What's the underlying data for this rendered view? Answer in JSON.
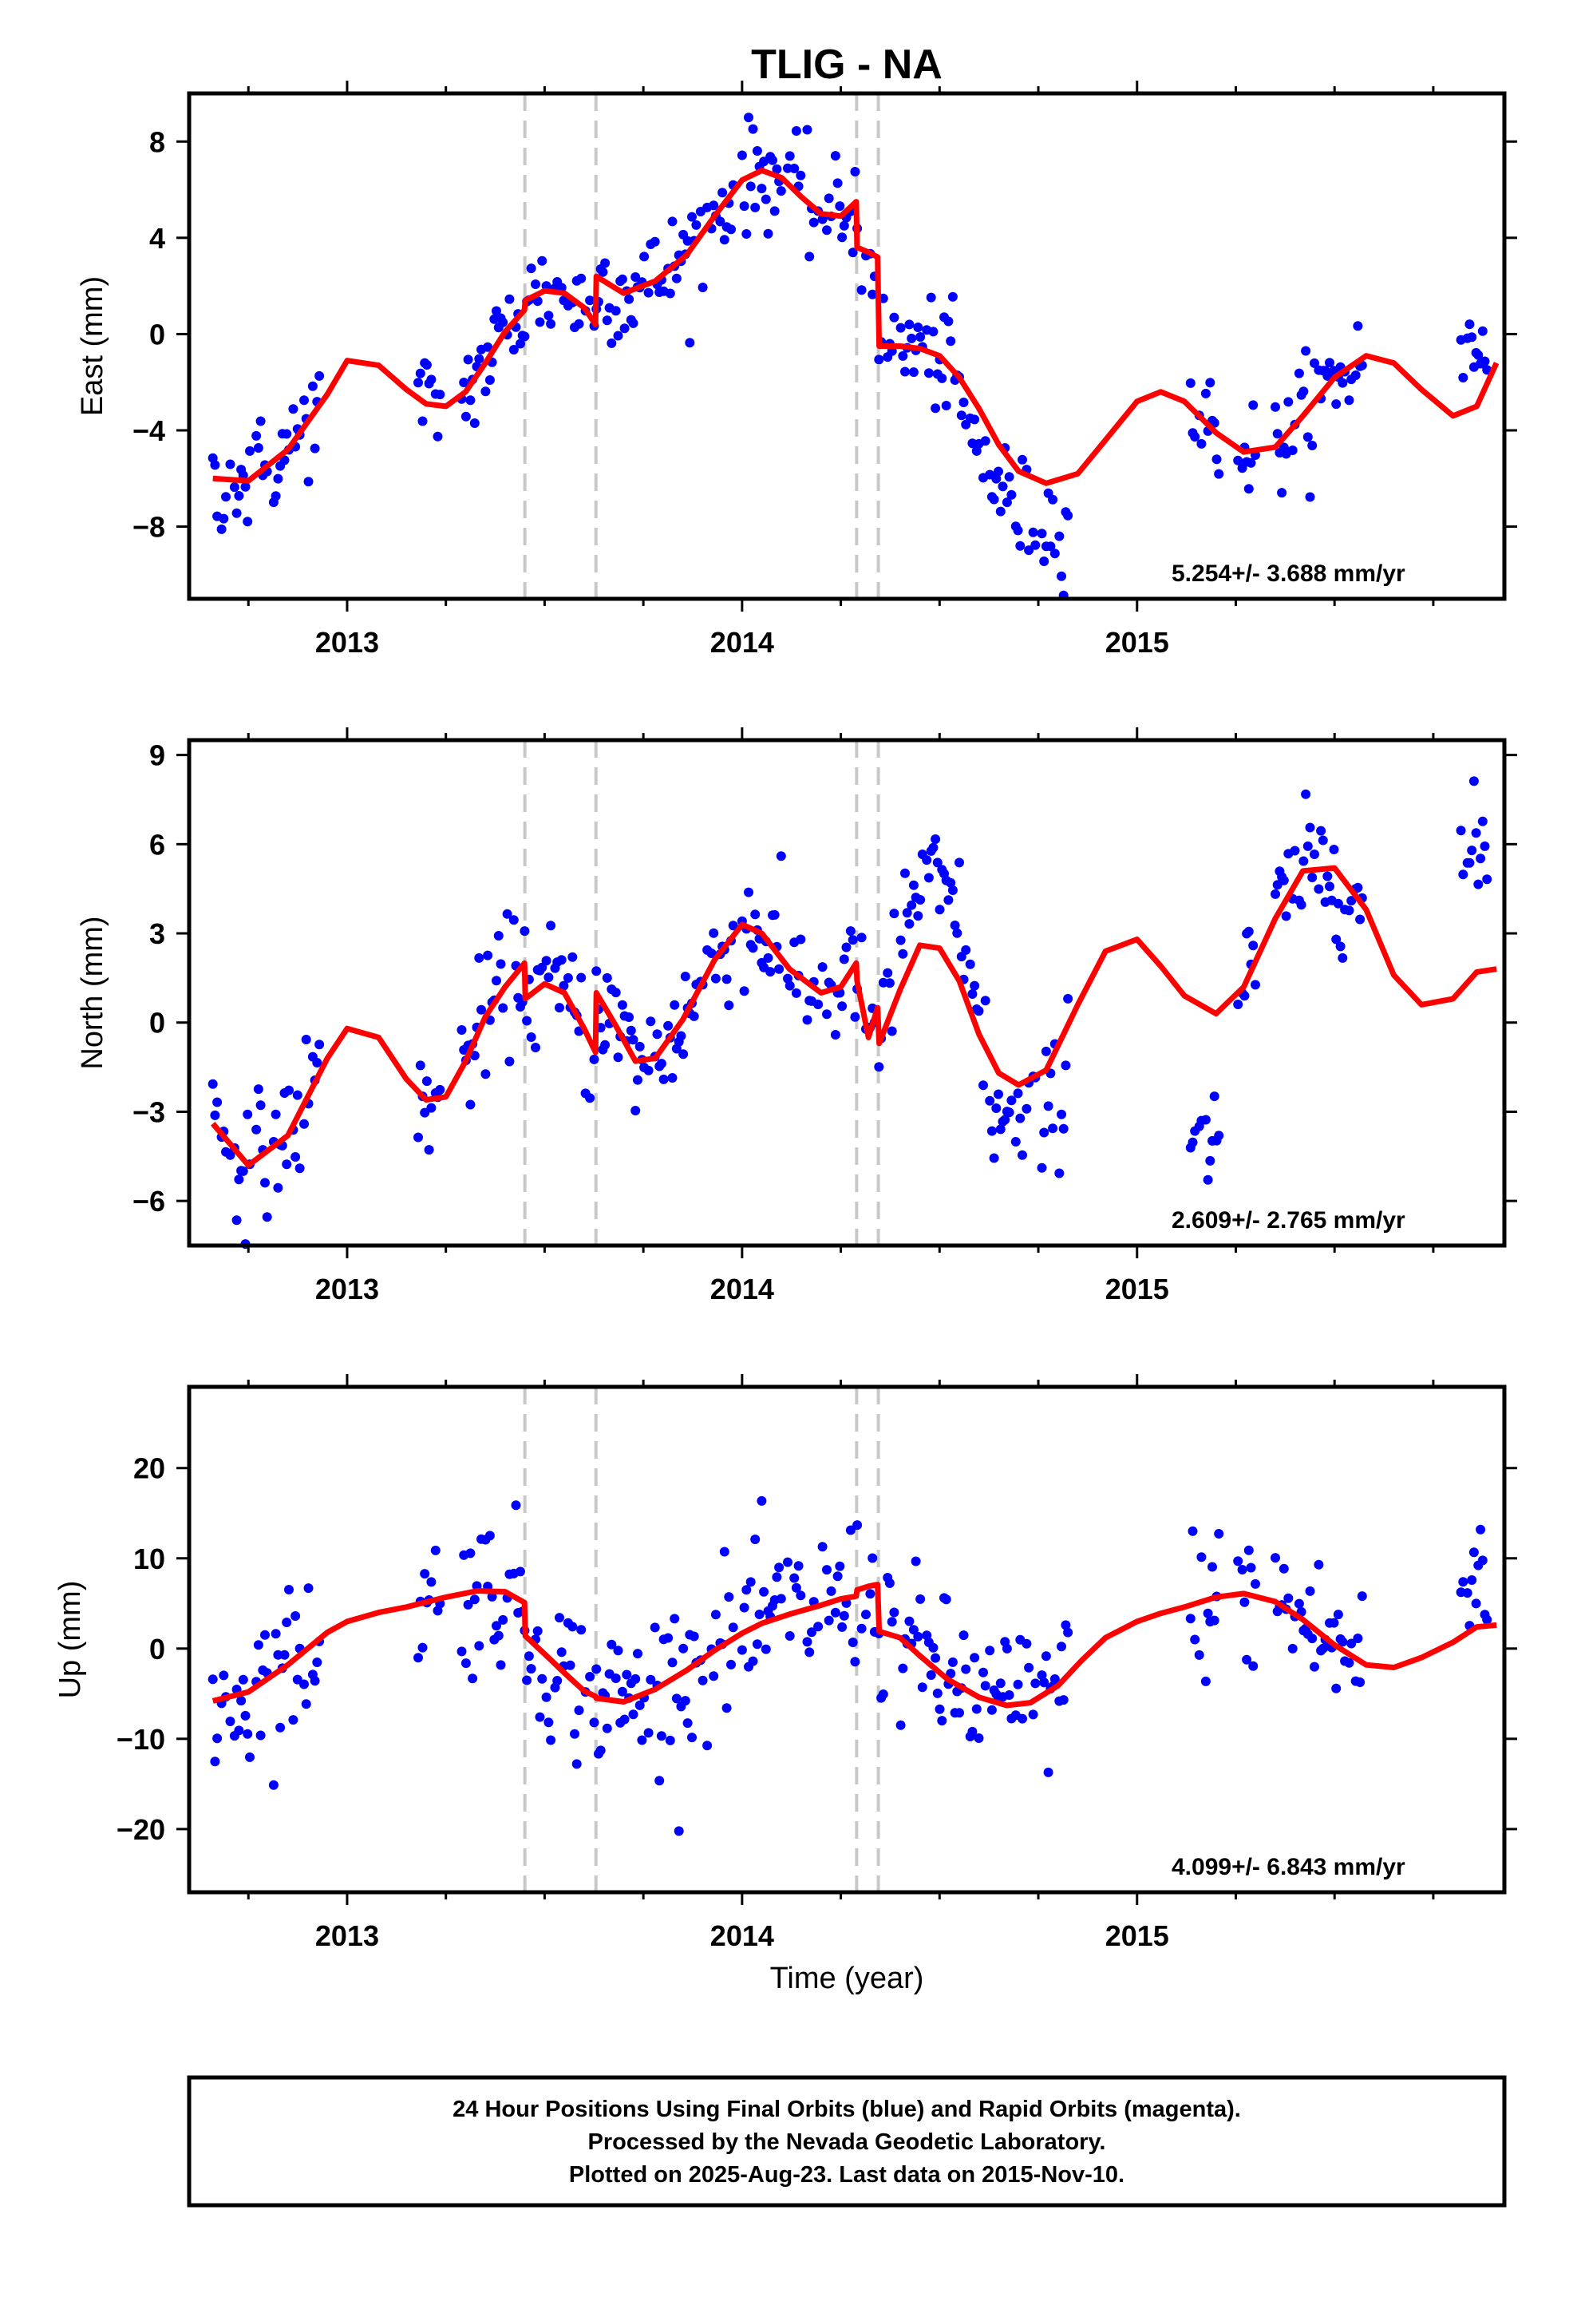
{
  "title": "TLIG - NA",
  "xlabel": "Time (year)",
  "footer": {
    "line1": "24 Hour Positions Using Final Orbits (blue) and Rapid Orbits (magenta).",
    "line2": "Processed by the Nevada Geodetic Laboratory.",
    "line3": "Plotted on 2025-Aug-23. Last data on 2015-Nov-10."
  },
  "colors": {
    "points": "#0000ff",
    "model": "#ff0000",
    "events": "#c8c8c8",
    "frame": "#000000"
  },
  "chart_data": [
    {
      "type": "scatter",
      "panel": "east",
      "ylabel": "East (mm)",
      "rate": "5.254+/- 3.688 mm/yr",
      "xlim": [
        2012.6,
        2015.93
      ],
      "ylim": [
        -11,
        10
      ],
      "xticks": [
        2013,
        2014,
        2015
      ],
      "yticks": [
        -8,
        -4,
        0,
        4,
        8
      ],
      "ytick_labels": [
        "−8",
        "−4",
        "0",
        "4",
        "8"
      ],
      "event_lines": [
        2013.45,
        2013.63,
        2014.29,
        2014.345
      ],
      "model": {
        "x": [
          2012.66,
          2012.75,
          2012.85,
          2012.95,
          2013.0,
          2013.08,
          2013.15,
          2013.2,
          2013.25,
          2013.3,
          2013.35,
          2013.4,
          2013.449,
          2013.451,
          2013.5,
          2013.55,
          2013.6,
          2013.629,
          2013.631,
          2013.7,
          2013.78,
          2013.86,
          2013.93,
          2014.0,
          2014.05,
          2014.1,
          2014.15,
          2014.2,
          2014.25,
          2014.289,
          2014.291,
          2014.32,
          2014.343,
          2014.347,
          2014.4,
          2014.45,
          2014.5,
          2014.55,
          2014.6,
          2014.65,
          2014.7,
          2014.77,
          2014.85,
          2014.92,
          2015.0,
          2015.06,
          2015.12,
          2015.2,
          2015.27,
          2015.35,
          2015.42,
          2015.5,
          2015.58,
          2015.65,
          2015.72,
          2015.8,
          2015.86,
          2015.91
        ],
        "y": [
          -6.0,
          -6.1,
          -4.8,
          -2.5,
          -1.1,
          -1.3,
          -2.3,
          -2.9,
          -3.0,
          -2.4,
          -1.2,
          0.1,
          1.0,
          1.4,
          1.8,
          1.7,
          1.1,
          0.4,
          2.4,
          1.7,
          2.2,
          3.3,
          4.9,
          6.4,
          6.8,
          6.5,
          5.7,
          5.0,
          4.9,
          5.5,
          3.6,
          3.4,
          3.2,
          -0.5,
          -0.5,
          -0.6,
          -0.9,
          -1.8,
          -3.1,
          -4.6,
          -5.7,
          -6.2,
          -5.8,
          -4.4,
          -2.8,
          -2.4,
          -2.8,
          -4.1,
          -4.9,
          -4.7,
          -3.4,
          -1.8,
          -0.9,
          -1.2,
          -2.3,
          -3.4,
          -3.0,
          -1.2
        ]
      },
      "points_x": [],
      "points_y": []
    },
    {
      "type": "scatter",
      "panel": "north",
      "ylabel": "North (mm)",
      "rate": "2.609+/- 2.765 mm/yr",
      "xlim": [
        2012.6,
        2015.93
      ],
      "ylim": [
        -7.5,
        9.5
      ],
      "xticks": [
        2013,
        2014,
        2015
      ],
      "yticks": [
        -6,
        -3,
        0,
        3,
        6,
        9
      ],
      "ytick_labels": [
        "−6",
        "−3",
        "0",
        "3",
        "6",
        "9"
      ],
      "event_lines": [
        2013.45,
        2013.63,
        2014.29,
        2014.345
      ],
      "model": {
        "x": [
          2012.66,
          2012.75,
          2012.85,
          2012.95,
          2013.0,
          2013.08,
          2013.15,
          2013.2,
          2013.25,
          2013.3,
          2013.35,
          2013.4,
          2013.449,
          2013.451,
          2013.5,
          2013.55,
          2013.6,
          2013.629,
          2013.631,
          2013.68,
          2013.73,
          2013.78,
          2013.85,
          2013.93,
          2014.0,
          2014.05,
          2014.12,
          2014.2,
          2014.25,
          2014.289,
          2014.291,
          2014.32,
          2014.343,
          2014.347,
          2014.4,
          2014.45,
          2014.5,
          2014.55,
          2014.6,
          2014.65,
          2014.7,
          2014.77,
          2014.85,
          2014.92,
          2015.0,
          2015.06,
          2015.12,
          2015.2,
          2015.27,
          2015.35,
          2015.42,
          2015.5,
          2015.58,
          2015.65,
          2015.72,
          2015.8,
          2015.86,
          2015.91
        ],
        "y": [
          -3.4,
          -4.8,
          -3.8,
          -1.2,
          -0.2,
          -0.5,
          -1.9,
          -2.6,
          -2.5,
          -1.3,
          0.2,
          1.2,
          2.0,
          0.8,
          1.3,
          1.0,
          -0.2,
          -1.0,
          1.0,
          -0.1,
          -1.3,
          -1.2,
          0.1,
          2.1,
          3.3,
          3.0,
          1.8,
          1.0,
          1.2,
          2.0,
          1.4,
          -0.5,
          0.5,
          -0.7,
          1.1,
          2.6,
          2.5,
          1.4,
          -0.4,
          -1.7,
          -2.1,
          -1.6,
          0.6,
          2.4,
          2.8,
          1.9,
          0.9,
          0.3,
          1.2,
          3.5,
          5.1,
          5.2,
          3.8,
          1.6,
          0.6,
          0.8,
          1.7,
          1.8
        ]
      },
      "points_x": [],
      "points_y": []
    },
    {
      "type": "scatter",
      "panel": "up",
      "ylabel": "Up (mm)",
      "rate": "4.099+/- 6.843 mm/yr",
      "xlim": [
        2012.6,
        2015.93
      ],
      "ylim": [
        -27,
        29
      ],
      "xticks": [
        2013,
        2014,
        2015
      ],
      "yticks": [
        -20,
        -10,
        0,
        10,
        20
      ],
      "ytick_labels": [
        "−20",
        "−10",
        "0",
        "10",
        "20"
      ],
      "event_lines": [
        2013.45,
        2013.63,
        2014.29,
        2014.345
      ],
      "model": {
        "x": [
          2012.66,
          2012.75,
          2012.85,
          2012.95,
          2013.0,
          2013.08,
          2013.15,
          2013.25,
          2013.33,
          2013.4,
          2013.449,
          2013.451,
          2013.5,
          2013.55,
          2013.6,
          2013.629,
          2013.631,
          2013.7,
          2013.78,
          2013.86,
          2013.93,
          2014.0,
          2014.05,
          2014.12,
          2014.2,
          2014.25,
          2014.289,
          2014.291,
          2014.32,
          2014.343,
          2014.347,
          2014.4,
          2014.45,
          2014.52,
          2014.6,
          2014.67,
          2014.73,
          2014.8,
          2014.86,
          2014.92,
          2015.0,
          2015.06,
          2015.12,
          2015.2,
          2015.27,
          2015.35,
          2015.42,
          2015.5,
          2015.58,
          2015.65,
          2015.72,
          2015.8,
          2015.86,
          2015.91
        ],
        "y": [
          -5.8,
          -4.8,
          -1.8,
          1.8,
          3.0,
          4.0,
          4.6,
          5.7,
          6.4,
          6.3,
          5.1,
          1.4,
          -0.6,
          -2.7,
          -4.7,
          -5.3,
          -5.5,
          -5.9,
          -4.5,
          -2.4,
          -0.2,
          1.7,
          2.8,
          3.8,
          4.8,
          5.5,
          5.8,
          6.5,
          6.9,
          7.1,
          1.9,
          1.2,
          -0.8,
          -3.4,
          -5.4,
          -6.3,
          -6.0,
          -4.1,
          -1.3,
          1.2,
          3.0,
          3.9,
          4.6,
          5.7,
          6.1,
          5.2,
          3.2,
          0.4,
          -1.8,
          -2.1,
          -1.0,
          0.7,
          2.4,
          2.6
        ]
      },
      "points_x": [],
      "points_y": []
    }
  ]
}
